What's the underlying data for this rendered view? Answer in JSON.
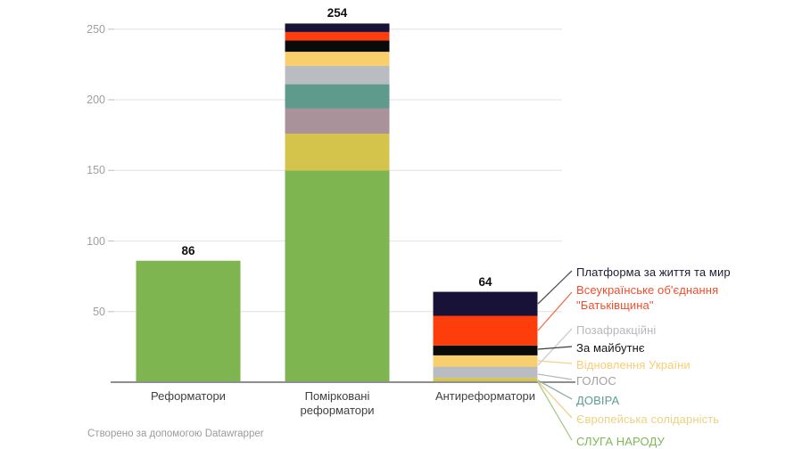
{
  "chart_data": {
    "type": "bar",
    "variant": "stacked-column",
    "title": "",
    "xlabel": "",
    "ylabel": "",
    "grid": true,
    "legend_position": "right",
    "ylim": [
      0,
      260
    ],
    "y_ticks": [
      50,
      100,
      150,
      200,
      250
    ],
    "categories": [
      "Реформатори",
      "Помірковані реформатори",
      "Антиреформатори"
    ],
    "totals": [
      86,
      254,
      64
    ],
    "series": [
      {
        "name": "СЛУГА НАРОДУ",
        "color": "#7EB550",
        "values": [
          86,
          150,
          0
        ]
      },
      {
        "name": "Європейська солідарність",
        "color": "#D5C44C",
        "values": [
          0,
          26,
          3
        ]
      },
      {
        "name": "ГОЛОС",
        "color": "#AA929A",
        "values": [
          0,
          18,
          0
        ]
      },
      {
        "name": "ДОВІРА",
        "color": "#5F9B8C",
        "values": [
          0,
          17,
          0
        ]
      },
      {
        "name": "Позафракційні",
        "color": "#B9BCC0",
        "values": [
          0,
          13,
          8
        ]
      },
      {
        "name": "Відновлення України",
        "color": "#F9CE6D",
        "values": [
          0,
          10,
          8
        ]
      },
      {
        "name": "За майбутнє",
        "color": "#0A0A0A",
        "values": [
          0,
          8,
          7
        ]
      },
      {
        "name": "Всеукраїнське об'єднання \"Батьківщина\"",
        "color": "#FE3D0D",
        "values": [
          0,
          6,
          21
        ]
      },
      {
        "name": "Платформа за життя та мир",
        "color": "#181238",
        "values": [
          0,
          6,
          17
        ]
      }
    ]
  },
  "legend": {
    "items": [
      {
        "label": "Платформа за життя та мир",
        "color": "#1F1B33",
        "line_color": "#55555a"
      },
      {
        "label": "Всеукраїнське об'єднання\n\"Батьківщина\"",
        "color": "#F14E2C",
        "line_color": "#F0714F"
      },
      {
        "label": "Позафракційні",
        "color": "#B5B8BC",
        "line_color": "#C9CCCF"
      },
      {
        "label": "За майбутнє",
        "color": "#141414",
        "line_color": "#3c3c3c"
      },
      {
        "label": "Відновлення України",
        "color": "#F8CE74",
        "line_color": "#F3D088"
      },
      {
        "label": "ГОЛОС",
        "color": "#A7A0A3",
        "line_color": "#B7BABD"
      },
      {
        "label": "ДОВІРА",
        "color": "#5E9C90",
        "line_color": "#92AEA8"
      },
      {
        "label": "Європейська солідарність",
        "color": "#EBD283",
        "line_color": "#E8D48F"
      },
      {
        "label": "СЛУГА НАРОДУ",
        "color": "#7DB954",
        "line_color": "#A9CC8C"
      }
    ]
  },
  "footer": {
    "credit": "Створено за допомогою Datawrapper"
  }
}
